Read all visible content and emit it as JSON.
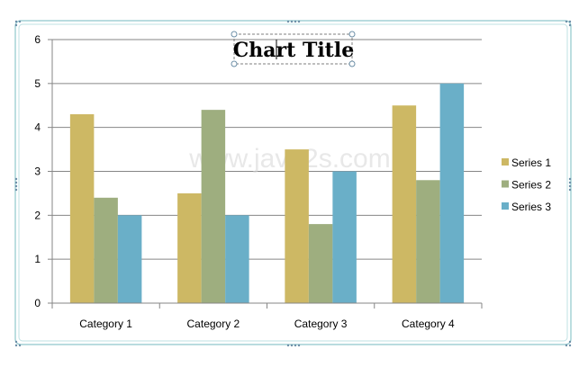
{
  "chart_data": {
    "type": "bar",
    "title": "Chart Title",
    "categories": [
      "Category 1",
      "Category 2",
      "Category 3",
      "Category 4"
    ],
    "series": [
      {
        "name": "Series 1",
        "values": [
          4.3,
          2.5,
          3.5,
          4.5
        ],
        "color": "#CDB864"
      },
      {
        "name": "Series 2",
        "values": [
          2.4,
          4.4,
          1.8,
          2.8
        ],
        "color": "#9EAE7F"
      },
      {
        "name": "Series 3",
        "values": [
          2.0,
          2.0,
          3.0,
          5.0
        ],
        "color": "#6AAFC8"
      }
    ],
    "ylim": [
      0,
      6
    ],
    "yticks": [
      "0",
      "1",
      "2",
      "3",
      "4",
      "5",
      "6"
    ],
    "grid": true,
    "legend": "right"
  },
  "watermark": "www.java2s.com",
  "colors": {
    "frame": "#8FC7CC",
    "gridline": "#868686",
    "handle": "#6D8FA8"
  }
}
